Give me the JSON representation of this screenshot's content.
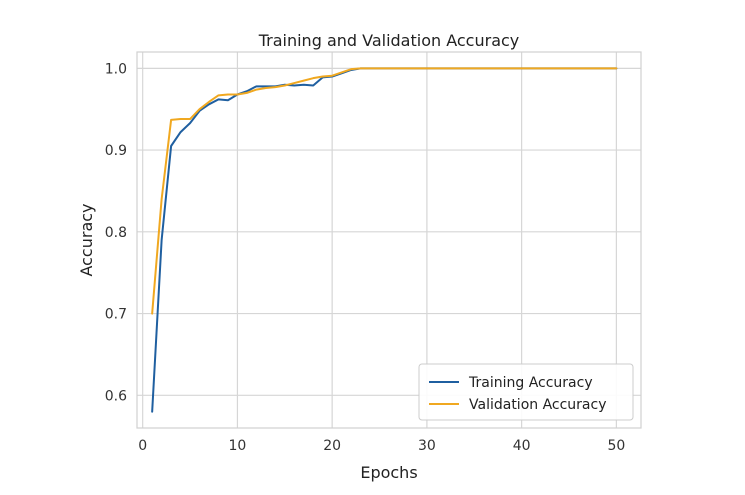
{
  "chart_data": {
    "type": "line",
    "title": "Training and Validation Accuracy",
    "xlabel": "Epochs",
    "ylabel": "Accuracy",
    "xlim": [
      -0.6,
      52.6
    ],
    "ylim": [
      0.56,
      1.02
    ],
    "xticks": [
      0,
      10,
      20,
      30,
      40,
      50
    ],
    "yticks": [
      0.6,
      0.7,
      0.8,
      0.9,
      1.0
    ],
    "xtick_labels": [
      "0",
      "10",
      "20",
      "30",
      "40",
      "50"
    ],
    "ytick_labels": [
      "0.6",
      "0.7",
      "0.8",
      "0.9",
      "1.0"
    ],
    "grid": true,
    "legend_position": "bottom-right",
    "series": [
      {
        "name": "Training Accuracy",
        "color": "#1f5fa0",
        "x": [
          1,
          2,
          3,
          4,
          5,
          6,
          7,
          8,
          9,
          10,
          11,
          12,
          13,
          14,
          15,
          16,
          17,
          18,
          19,
          20,
          21,
          22,
          23,
          24,
          25,
          26,
          27,
          28,
          29,
          30,
          31,
          32,
          33,
          34,
          35,
          36,
          37,
          38,
          39,
          40,
          41,
          42,
          43,
          44,
          45,
          46,
          47,
          48,
          49,
          50
        ],
        "values": [
          0.58,
          0.79,
          0.905,
          0.922,
          0.933,
          0.948,
          0.956,
          0.962,
          0.961,
          0.968,
          0.972,
          0.978,
          0.978,
          0.978,
          0.98,
          0.979,
          0.98,
          0.979,
          0.989,
          0.99,
          0.994,
          0.998,
          1.0,
          1.0,
          1.0,
          1.0,
          1.0,
          1.0,
          1.0,
          1.0,
          1.0,
          1.0,
          1.0,
          1.0,
          1.0,
          1.0,
          1.0,
          1.0,
          1.0,
          1.0,
          1.0,
          1.0,
          1.0,
          1.0,
          1.0,
          1.0,
          1.0,
          1.0,
          1.0,
          1.0
        ]
      },
      {
        "name": "Validation Accuracy",
        "color": "#f0a820",
        "x": [
          1,
          2,
          3,
          4,
          5,
          6,
          7,
          8,
          9,
          10,
          11,
          12,
          13,
          14,
          15,
          16,
          17,
          18,
          19,
          20,
          21,
          22,
          23,
          24,
          25,
          26,
          27,
          28,
          29,
          30,
          31,
          32,
          33,
          34,
          35,
          36,
          37,
          38,
          39,
          40,
          41,
          42,
          43,
          44,
          45,
          46,
          47,
          48,
          49,
          50
        ],
        "values": [
          0.7,
          0.84,
          0.937,
          0.938,
          0.938,
          0.95,
          0.959,
          0.967,
          0.968,
          0.968,
          0.97,
          0.974,
          0.976,
          0.977,
          0.979,
          0.982,
          0.985,
          0.988,
          0.99,
          0.991,
          0.995,
          0.999,
          1.0,
          1.0,
          1.0,
          1.0,
          1.0,
          1.0,
          1.0,
          1.0,
          1.0,
          1.0,
          1.0,
          1.0,
          1.0,
          1.0,
          1.0,
          1.0,
          1.0,
          1.0,
          1.0,
          1.0,
          1.0,
          1.0,
          1.0,
          1.0,
          1.0,
          1.0,
          1.0,
          1.0
        ]
      }
    ]
  }
}
